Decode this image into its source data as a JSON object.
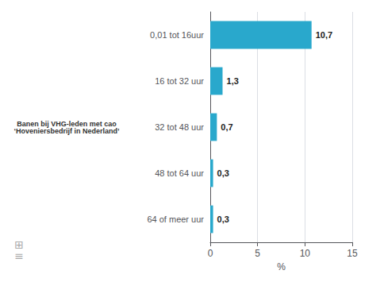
{
  "chart_data": {
    "type": "bar",
    "orientation": "horizontal",
    "categories": [
      "0,01 tot 16uur",
      "16 tot 32 uur",
      "32 tot 48 uur",
      "48 tot 64 uur",
      "64 of meer uur"
    ],
    "values": [
      10.7,
      1.3,
      0.7,
      0.3,
      0.3
    ],
    "value_labels": [
      "10,7",
      "1,3",
      "0,7",
      "0,3",
      "0,3"
    ],
    "data_labels": true,
    "color": "#29a8cc",
    "xlabel": "%",
    "xlim": [
      0,
      15
    ],
    "xticks": [
      0,
      5,
      10,
      15
    ],
    "grid": true,
    "annotations": [
      "Banen bij VHG-leden met cao\n‘Hoveniersbedrijf in Nederland’",
      "⊞\n≡"
    ]
  }
}
